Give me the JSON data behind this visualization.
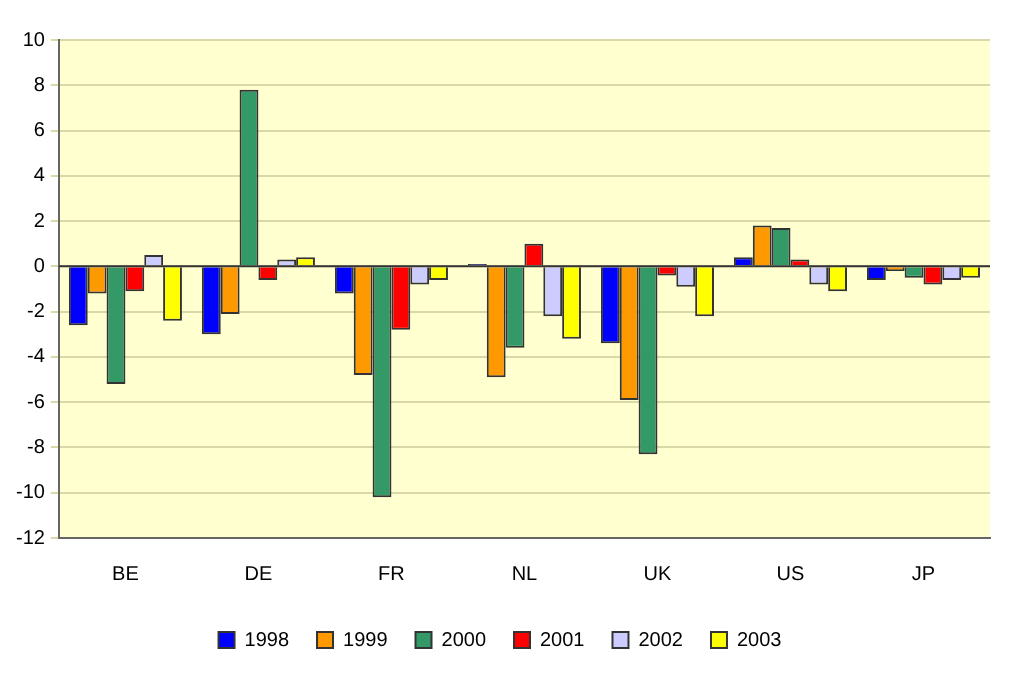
{
  "chart_data": {
    "type": "bar",
    "categories": [
      "BE",
      "DE",
      "FR",
      "NL",
      "UK",
      "US",
      "JP"
    ],
    "series": [
      {
        "name": "1998",
        "color": "#0000ff",
        "values": [
          -2.6,
          -3.0,
          -1.2,
          0.1,
          -3.4,
          0.4,
          -0.6
        ]
      },
      {
        "name": "1999",
        "color": "#ff9900",
        "values": [
          -1.2,
          -2.1,
          -4.8,
          -4.9,
          -5.9,
          1.8,
          -0.2
        ]
      },
      {
        "name": "2000",
        "color": "#339966",
        "values": [
          -5.2,
          7.8,
          -10.2,
          -3.6,
          -8.3,
          1.7,
          -0.5
        ]
      },
      {
        "name": "2001",
        "color": "#ff0000",
        "values": [
          -1.1,
          -0.6,
          -2.8,
          1.0,
          -0.4,
          0.3,
          -0.8
        ]
      },
      {
        "name": "2002",
        "color": "#ccccff",
        "values": [
          0.5,
          0.3,
          -0.8,
          -2.2,
          -0.9,
          -0.8,
          -0.6
        ]
      },
      {
        "name": "2003",
        "color": "#ffff00",
        "values": [
          -2.4,
          0.4,
          -0.6,
          -3.2,
          -2.2,
          -1.1,
          -0.5
        ]
      }
    ],
    "ylim": [
      -12,
      10
    ],
    "yticks": [
      -12,
      -10,
      -8,
      -6,
      -4,
      -2,
      0,
      2,
      4,
      6,
      8,
      10
    ],
    "grid": "y",
    "legend": "bottom"
  }
}
